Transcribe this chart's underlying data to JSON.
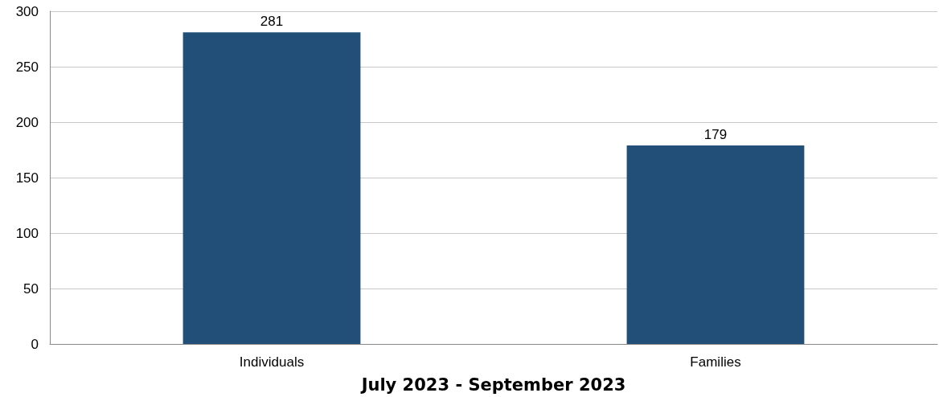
{
  "chart_data": {
    "type": "bar",
    "xlabel": "July 2023 - September 2023",
    "categories": [
      "Individuals",
      "Families"
    ],
    "values": [
      281,
      179
    ],
    "color": "#214f78",
    "ylim": [
      0,
      300
    ],
    "yticks": [
      0,
      50,
      100,
      150,
      200,
      250,
      300
    ],
    "grid": "y",
    "data_labels": true
  }
}
